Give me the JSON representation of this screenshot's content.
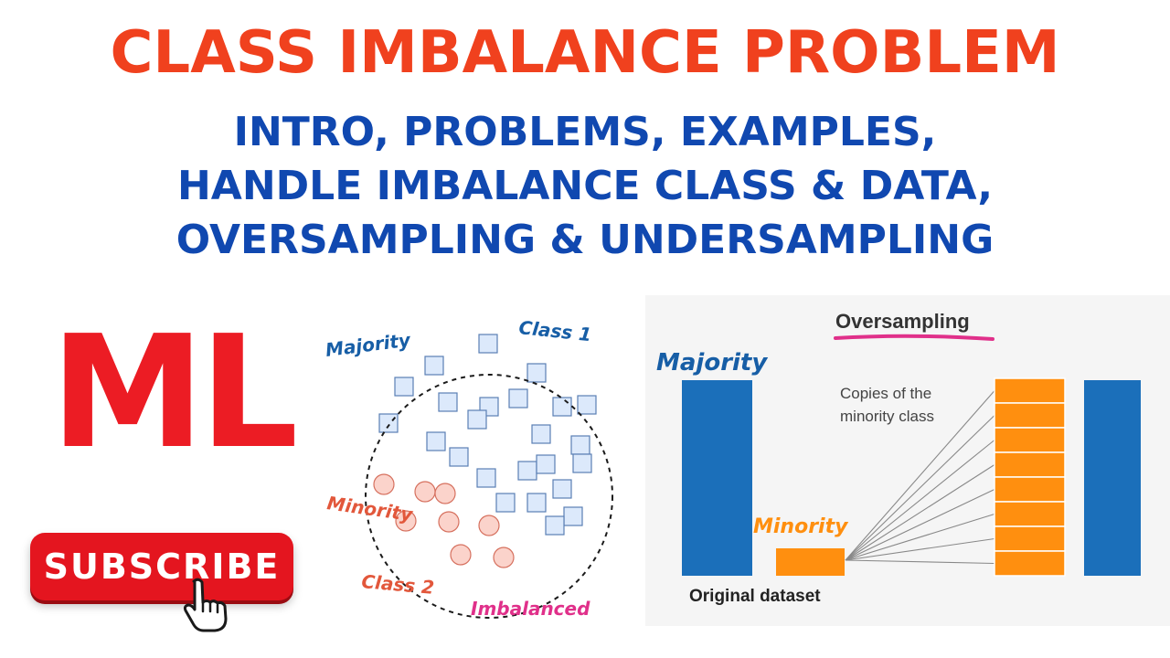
{
  "header": {
    "title": "CLASS IMBALANCE PROBLEM",
    "subtitle_lines": [
      "INTRO, PROBLEMS, EXAMPLES,",
      "HANDLE IMBALANCE CLASS & DATA,",
      "OVERSAMPLING & UNDERSAMPLING"
    ]
  },
  "badge": {
    "text": "ML"
  },
  "subscribe": {
    "label": "SUBSCRIBE",
    "icon": "pointer-hand-icon"
  },
  "scatter_diagram": {
    "majority_label": "Majority",
    "class1_label": "Class 1",
    "minority_label": "Minority",
    "class2_label": "Class 2",
    "imbalanced_label": "Imbalanced",
    "majority_count": 24,
    "minority_count": 8
  },
  "oversampling_diagram": {
    "title": "Oversampling",
    "majority_label": "Majority",
    "minority_label": "Minority",
    "copies_label_line1": "Copies of the",
    "copies_label_line2": "minority class",
    "footer_label": "Original dataset",
    "copy_count": 8
  },
  "colors": {
    "title": "#f0411e",
    "subtitle": "#1048b0",
    "badge": "#ec1c24",
    "subscribe": "#e4151f",
    "majority_square": "#dce9fb",
    "minority_circle": "#fbd3cb",
    "bar_blue": "#1b6fba",
    "bar_orange": "#ff8f0f",
    "handwriting_blue": "#175ea6",
    "handwriting_red": "#e2573b",
    "handwriting_pink": "#e0308a"
  }
}
